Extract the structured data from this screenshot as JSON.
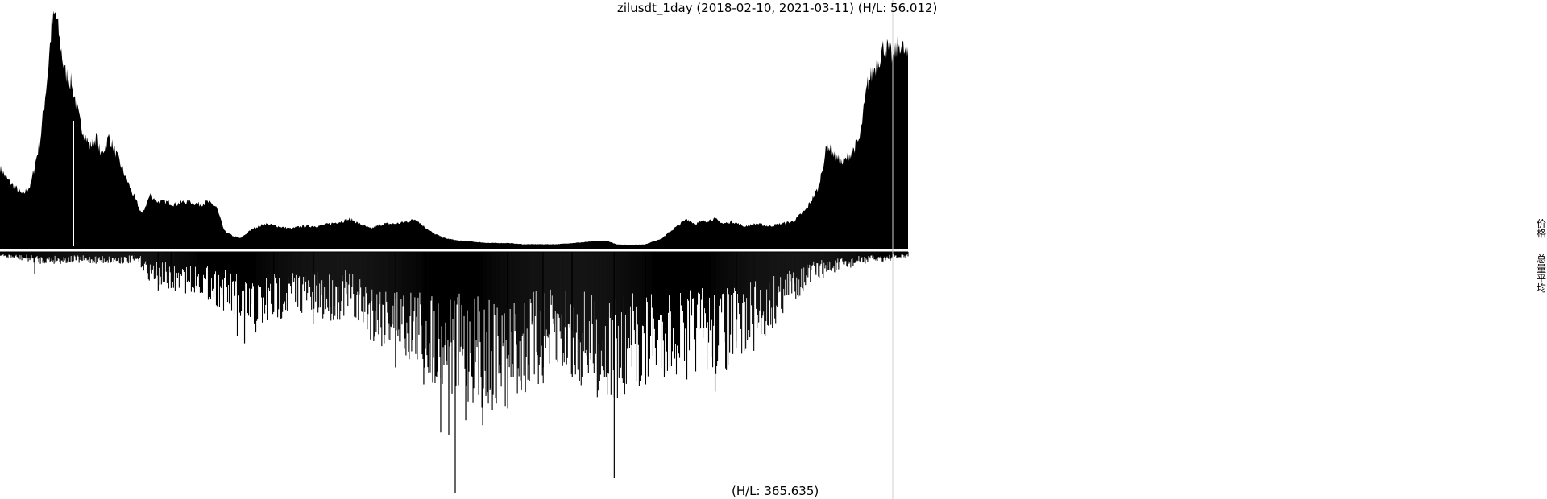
{
  "chart_data": [
    {
      "type": "area",
      "role": "price",
      "title": "zilusdt_1day (2018-02-10, 2021-03-11) (H/L: 56.012)",
      "x_range": [
        "2018-02-10",
        "2021-03-11"
      ],
      "color": "#000000",
      "ylim": [
        0,
        1
      ],
      "points": [
        [
          "2018-02-10",
          0.33
        ],
        [
          "2018-02-20",
          0.28
        ],
        [
          "2018-03-01",
          0.25
        ],
        [
          "2018-03-10",
          0.22
        ],
        [
          "2018-03-20",
          0.26
        ],
        [
          "2018-04-01",
          0.45
        ],
        [
          "2018-04-10",
          0.72
        ],
        [
          "2018-04-15",
          0.92
        ],
        [
          "2018-04-20",
          0.97
        ],
        [
          "2018-05-01",
          0.73
        ],
        [
          "2018-05-10",
          0.68
        ],
        [
          "2018-05-20",
          0.52
        ],
        [
          "2018-06-01",
          0.42
        ],
        [
          "2018-06-10",
          0.46
        ],
        [
          "2018-06-15",
          0.38
        ],
        [
          "2018-06-25",
          0.46
        ],
        [
          "2018-07-05",
          0.38
        ],
        [
          "2018-07-15",
          0.3
        ],
        [
          "2018-07-25",
          0.22
        ],
        [
          "2018-08-05",
          0.14
        ],
        [
          "2018-08-15",
          0.22
        ],
        [
          "2018-08-25",
          0.19
        ],
        [
          "2018-09-05",
          0.19
        ],
        [
          "2018-09-15",
          0.18
        ],
        [
          "2018-09-25",
          0.19
        ],
        [
          "2018-10-05",
          0.19
        ],
        [
          "2018-10-15",
          0.18
        ],
        [
          "2018-10-25",
          0.19
        ],
        [
          "2018-11-05",
          0.17
        ],
        [
          "2018-11-15",
          0.07
        ],
        [
          "2018-11-25",
          0.05
        ],
        [
          "2018-12-05",
          0.04
        ],
        [
          "2018-12-20",
          0.08
        ],
        [
          "2019-01-05",
          0.1
        ],
        [
          "2019-01-20",
          0.09
        ],
        [
          "2019-02-05",
          0.08
        ],
        [
          "2019-02-20",
          0.09
        ],
        [
          "2019-03-10",
          0.09
        ],
        [
          "2019-03-25",
          0.1
        ],
        [
          "2019-04-10",
          0.11
        ],
        [
          "2019-04-20",
          0.12
        ],
        [
          "2019-05-01",
          0.1
        ],
        [
          "2019-05-15",
          0.08
        ],
        [
          "2019-06-01",
          0.1
        ],
        [
          "2019-06-15",
          0.1
        ],
        [
          "2019-07-01",
          0.11
        ],
        [
          "2019-07-10",
          0.12
        ],
        [
          "2019-07-20",
          0.09
        ],
        [
          "2019-08-01",
          0.06
        ],
        [
          "2019-08-15",
          0.04
        ],
        [
          "2019-09-01",
          0.03
        ],
        [
          "2019-09-20",
          0.025
        ],
        [
          "2019-10-10",
          0.02
        ],
        [
          "2019-11-01",
          0.02
        ],
        [
          "2019-11-20",
          0.015
        ],
        [
          "2019-12-10",
          0.015
        ],
        [
          "2020-01-01",
          0.015
        ],
        [
          "2020-01-20",
          0.02
        ],
        [
          "2020-02-10",
          0.025
        ],
        [
          "2020-03-01",
          0.03
        ],
        [
          "2020-03-15",
          0.015
        ],
        [
          "2020-04-01",
          0.012
        ],
        [
          "2020-04-20",
          0.015
        ],
        [
          "2020-05-10",
          0.04
        ],
        [
          "2020-05-25",
          0.08
        ],
        [
          "2020-06-10",
          0.12
        ],
        [
          "2020-06-20",
          0.1
        ],
        [
          "2020-07-01",
          0.11
        ],
        [
          "2020-07-15",
          0.12
        ],
        [
          "2020-07-25",
          0.1
        ],
        [
          "2020-08-05",
          0.11
        ],
        [
          "2020-08-20",
          0.09
        ],
        [
          "2020-09-05",
          0.1
        ],
        [
          "2020-09-20",
          0.09
        ],
        [
          "2020-10-05",
          0.1
        ],
        [
          "2020-10-20",
          0.11
        ],
        [
          "2020-11-05",
          0.16
        ],
        [
          "2020-11-20",
          0.25
        ],
        [
          "2020-12-01",
          0.43
        ],
        [
          "2020-12-10",
          0.38
        ],
        [
          "2020-12-20",
          0.35
        ],
        [
          "2021-01-01",
          0.4
        ],
        [
          "2021-01-10",
          0.45
        ],
        [
          "2021-01-20",
          0.68
        ],
        [
          "2021-02-01",
          0.77
        ],
        [
          "2021-02-10",
          0.84
        ],
        [
          "2021-02-20",
          0.79
        ],
        [
          "2021-03-01",
          0.85
        ],
        [
          "2021-03-11",
          0.78
        ]
      ]
    },
    {
      "type": "bar",
      "role": "volume",
      "title": "(H/L: 365.635)",
      "x_range": [
        "2018-02-10",
        "2021-03-11"
      ],
      "color": "#000000",
      "ylim": [
        0,
        1
      ],
      "envelope": [
        [
          "2018-02-10",
          0.02
        ],
        [
          "2018-03-10",
          0.03
        ],
        [
          "2018-04-01",
          0.04
        ],
        [
          "2018-05-01",
          0.04
        ],
        [
          "2018-06-01",
          0.04
        ],
        [
          "2018-07-01",
          0.04
        ],
        [
          "2018-08-01",
          0.04
        ],
        [
          "2018-08-15",
          0.1
        ],
        [
          "2018-09-15",
          0.14
        ],
        [
          "2018-10-15",
          0.14
        ],
        [
          "2018-11-15",
          0.2
        ],
        [
          "2018-12-15",
          0.3
        ],
        [
          "2019-01-15",
          0.24
        ],
        [
          "2019-02-15",
          0.2
        ],
        [
          "2019-03-15",
          0.24
        ],
        [
          "2019-04-15",
          0.22
        ],
        [
          "2019-05-15",
          0.3
        ],
        [
          "2019-06-15",
          0.34
        ],
        [
          "2019-07-15",
          0.4
        ],
        [
          "2019-08-15",
          0.48
        ],
        [
          "2019-09-15",
          0.5
        ],
        [
          "2019-10-15",
          0.55
        ],
        [
          "2019-11-15",
          0.5
        ],
        [
          "2019-12-15",
          0.45
        ],
        [
          "2020-01-15",
          0.42
        ],
        [
          "2020-02-15",
          0.48
        ],
        [
          "2020-03-15",
          0.52
        ],
        [
          "2020-04-15",
          0.46
        ],
        [
          "2020-05-15",
          0.42
        ],
        [
          "2020-06-15",
          0.4
        ],
        [
          "2020-07-15",
          0.42
        ],
        [
          "2020-08-15",
          0.38
        ],
        [
          "2020-09-15",
          0.3
        ],
        [
          "2020-10-15",
          0.18
        ],
        [
          "2020-11-15",
          0.1
        ],
        [
          "2020-12-15",
          0.07
        ],
        [
          "2021-01-15",
          0.04
        ],
        [
          "2021-02-15",
          0.03
        ],
        [
          "2021-03-11",
          0.02
        ]
      ],
      "spikes": [
        [
          "2018-03-25",
          0.09
        ],
        [
          "2018-08-25",
          0.16
        ],
        [
          "2018-09-10",
          0.15
        ],
        [
          "2018-12-01",
          0.35
        ],
        [
          "2018-12-10",
          0.38
        ],
        [
          "2019-01-15",
          0.25
        ],
        [
          "2019-03-05",
          0.3
        ],
        [
          "2019-06-15",
          0.48
        ],
        [
          "2019-07-20",
          0.55
        ],
        [
          "2019-08-10",
          0.75
        ],
        [
          "2019-08-20",
          0.76
        ],
        [
          "2019-08-28",
          1.0
        ],
        [
          "2019-09-10",
          0.7
        ],
        [
          "2019-10-01",
          0.72
        ],
        [
          "2019-11-01",
          0.65
        ],
        [
          "2019-12-15",
          0.48
        ],
        [
          "2020-01-20",
          0.52
        ],
        [
          "2020-03-12",
          0.94
        ],
        [
          "2020-04-20",
          0.55
        ],
        [
          "2020-06-10",
          0.53
        ],
        [
          "2020-07-15",
          0.58
        ],
        [
          "2020-08-10",
          0.4
        ]
      ]
    }
  ],
  "labels": {
    "title": "zilusdt_1day (2018-02-10, 2021-03-11) (H/L: 56.012)",
    "bottom": "(H/L: 365.635)",
    "side_price": "价格",
    "side_volume": "总量平均"
  }
}
